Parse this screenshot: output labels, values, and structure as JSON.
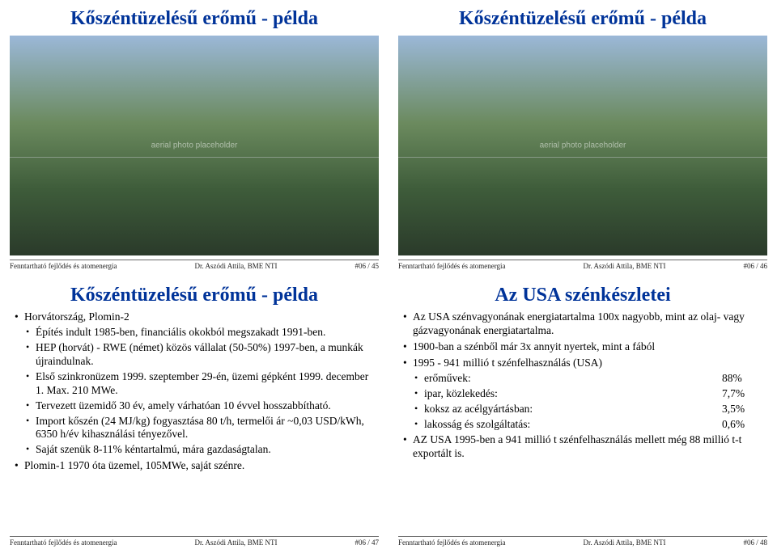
{
  "colors": {
    "accent": "#003399",
    "text": "#000000",
    "rule": "#666666"
  },
  "panels": {
    "p1": {
      "title": "Kőszéntüzelésű erőmű - példa",
      "footer_left": "Fenntartható fejlődés és atomenergia",
      "footer_mid": "Dr. Aszódi Attila, BME NTI",
      "footer_right": "#06 / 45",
      "image_alt": "aerial photo placeholder"
    },
    "p2": {
      "title": "Kőszéntüzelésű erőmű - példa",
      "footer_left": "Fenntartható fejlődés és atomenergia",
      "footer_mid": "Dr. Aszódi Attila, BME NTI",
      "footer_right": "#06 / 46",
      "image_alt": "aerial photo placeholder"
    },
    "p3": {
      "title": "Kőszéntüzelésű erőmű - példa",
      "l1": "Horvátország, Plomin-2",
      "l1a": "Építés indult 1985-ben, financiális okokból megszakadt 1991-ben.",
      "l1b": "HEP (horvát) - RWE (német) közös vállalat (50-50%) 1997-ben, a munkák újraindulnak.",
      "l1c": "Első szinkronüzem 1999. szeptember 29-én, üzemi gépként 1999. december 1. Max. 210 MWe.",
      "l1d": "Tervezett üzemidő 30 év, amely várhatóan 10 évvel hosszabbítható.",
      "l1e": "Import kőszén (24 MJ/kg) fogyasztása 80 t/h, termelői ár ~0,03 USD/kWh, 6350 h/év kihasználási tényezővel.",
      "l1f": "Saját szenük 8-11% kéntartalmú, mára gazdaságtalan.",
      "l2": "Plomin-1 1970 óta üzemel, 105MWe, saját szénre.",
      "footer_left": "Fenntartható fejlődés és atomenergia",
      "footer_mid": "Dr. Aszódi Attila, BME NTI",
      "footer_right": "#06 / 47"
    },
    "p4": {
      "title": "Az USA szénkészletei",
      "b1": "Az USA szénvagyonának energiatartalma 100x nagyobb, mint az olaj- vagy gázvagyonának energiatartalma.",
      "b2": "1900-ban a szénből már 3x annyit nyertek, mint a fából",
      "b3": "1995 -      941 millió t szénfelhasználás (USA)",
      "b3a_k": "erőművek:",
      "b3a_v": "88%",
      "b3b_k": "ipar, közlekedés:",
      "b3b_v": "7,7%",
      "b3c_k": "koksz az acélgyártásban:",
      "b3c_v": "3,5%",
      "b3d_k": "lakosság és szolgáltatás:",
      "b3d_v": "0,6%",
      "b4": "AZ USA 1995-ben a 941 millió t szénfelhasználás mellett még   88 millió t-t exportált is.",
      "footer_left": "Fenntartható fejlődés és atomenergia",
      "footer_mid": "Dr. Aszódi Attila, BME NTI",
      "footer_right": "#06 / 48"
    }
  }
}
